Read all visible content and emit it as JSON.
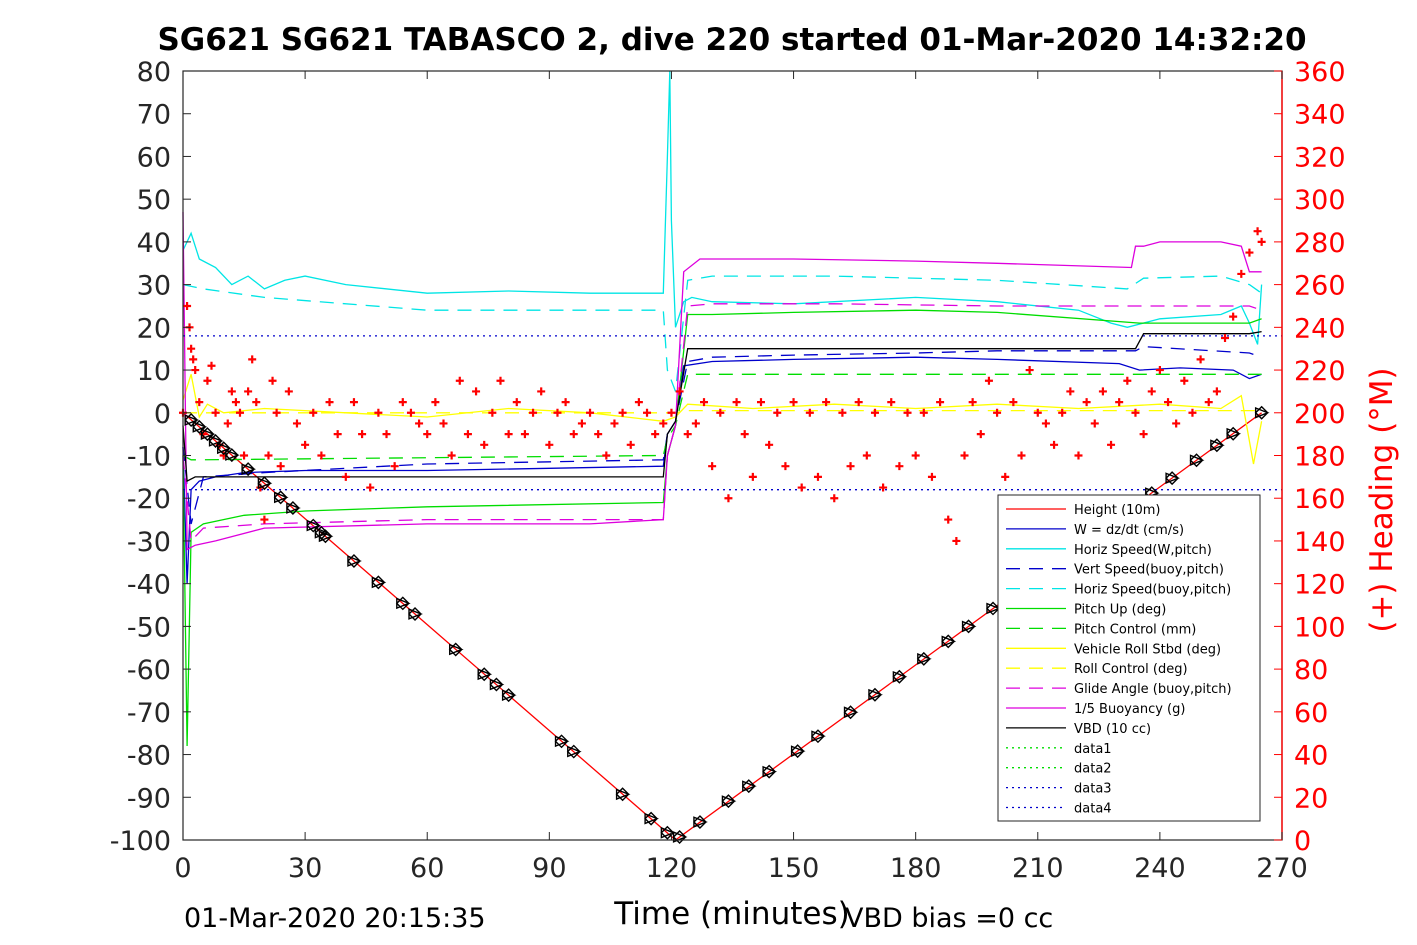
{
  "chart_data": {
    "type": "line",
    "title": "SG621 SG621 TABASCO 2, dive 220 started 01-Mar-2020 14:32:20",
    "xlabel": "Time (minutes)",
    "ylabel": "",
    "y2label": "(+) Heading (°M)",
    "footer_left": "01-Mar-2020 20:15:35",
    "footer_right": "VBD bias =0 cc",
    "xlim": [
      0,
      270
    ],
    "ylim": [
      -100,
      80
    ],
    "y2lim": [
      0,
      360
    ],
    "xticks": [
      "0",
      "30",
      "60",
      "90",
      "120",
      "150",
      "180",
      "210",
      "240",
      "270"
    ],
    "yticks": [
      "80",
      "70",
      "60",
      "50",
      "40",
      "30",
      "20",
      "10",
      "0",
      "-10",
      "-20",
      "-30",
      "-40",
      "-50",
      "-60",
      "-70",
      "-80",
      "-90",
      "-100"
    ],
    "y2ticks": [
      "360",
      "340",
      "320",
      "300",
      "280",
      "260",
      "240",
      "220",
      "200",
      "180",
      "160",
      "140",
      "120",
      "100",
      "80",
      "60",
      "40",
      "20",
      "0"
    ],
    "legend_position": "lower-right",
    "series": [
      {
        "name": "Height (10m)",
        "color": "#ff0000",
        "style": "solid",
        "x": [
          0,
          121,
          265
        ],
        "y": [
          0,
          -100,
          0
        ]
      },
      {
        "name": "W = dz/dt (cm/s)",
        "color": "#0000cc",
        "style": "solid",
        "x": [
          0,
          1,
          2,
          4,
          8,
          15,
          30,
          60,
          90,
          118,
          119,
          121,
          123,
          130,
          150,
          180,
          200,
          230,
          235,
          245,
          258,
          262,
          265
        ],
        "y": [
          -8,
          -40,
          -18,
          -16,
          -15,
          -14,
          -13.5,
          -13.5,
          -13,
          -12.5,
          -5,
          -2,
          11,
          12,
          12.5,
          13,
          12.5,
          11.5,
          10,
          10.5,
          10,
          8,
          9
        ]
      },
      {
        "name": "Horiz Speed(W,pitch)",
        "color": "#00e5e5",
        "style": "solid",
        "x": [
          0,
          2,
          4,
          8,
          12,
          16,
          20,
          25,
          30,
          40,
          60,
          80,
          100,
          118,
          119,
          119.6,
          120,
          121,
          123,
          125,
          130,
          150,
          180,
          200,
          220,
          228,
          232,
          240,
          255,
          260,
          262,
          264,
          265
        ],
        "y": [
          38,
          42,
          36,
          34,
          30,
          32,
          29,
          31,
          32,
          30,
          28,
          28.5,
          28,
          28,
          60,
          80,
          45,
          20,
          26,
          27,
          26,
          25.5,
          27,
          26,
          24,
          21,
          20,
          22,
          23,
          25,
          21,
          16,
          30
        ]
      },
      {
        "name": "Vert Speed(buoy,pitch)",
        "color": "#0000cc",
        "style": "dashed",
        "x": [
          0,
          2,
          5,
          20,
          60,
          118,
          119,
          121,
          124,
          130,
          150,
          180,
          200,
          234,
          236,
          262,
          265
        ],
        "y": [
          -8,
          -26,
          -15,
          -14,
          -12,
          -11,
          -5,
          -2,
          12,
          13,
          13.5,
          14,
          14.5,
          14.5,
          15.5,
          14,
          13
        ]
      },
      {
        "name": "Horiz Speed(buoy,pitch)",
        "color": "#00e5e5",
        "style": "dashed",
        "x": [
          0,
          5,
          20,
          60,
          118,
          119,
          121,
          124,
          130,
          160,
          200,
          232,
          236,
          255,
          262,
          265
        ],
        "y": [
          30,
          29,
          27,
          24,
          24,
          10,
          5,
          31,
          32,
          32,
          31,
          29,
          31.5,
          32,
          30,
          28
        ]
      },
      {
        "name": "Pitch Up (deg)",
        "color": "#00dd00",
        "style": "solid",
        "x": [
          0,
          1,
          2,
          5,
          15,
          30,
          60,
          118,
          119,
          121,
          124,
          130,
          150,
          180,
          200,
          235,
          262,
          265
        ],
        "y": [
          -10,
          -78,
          -28,
          -26,
          -24,
          -23,
          -22,
          -21,
          -10,
          -3,
          23,
          23,
          23.5,
          24,
          23.5,
          21,
          21,
          22
        ]
      },
      {
        "name": "Pitch Control (mm)",
        "color": "#00dd00",
        "style": "dashed",
        "x": [
          0,
          2,
          5,
          118,
          119,
          121,
          124,
          265
        ],
        "y": [
          -10,
          -11,
          -11,
          -10,
          -6,
          -3,
          9,
          9
        ]
      },
      {
        "name": "Vehicle Roll Stbd (deg)",
        "color": "#ffff00",
        "style": "solid",
        "x": [
          0,
          2,
          4,
          6,
          10,
          20,
          40,
          60,
          80,
          100,
          118,
          121,
          124,
          140,
          160,
          180,
          200,
          220,
          240,
          255,
          260,
          263,
          265
        ],
        "y": [
          3,
          9,
          -1,
          2,
          0,
          1,
          0,
          -1,
          1,
          0,
          -2,
          -1,
          2,
          1,
          2,
          1,
          2,
          1,
          2,
          1,
          4,
          -12,
          -2
        ]
      },
      {
        "name": "Roll Control (deg)",
        "color": "#ffff00",
        "style": "dashed",
        "x": [
          0,
          118,
          121,
          124,
          265
        ],
        "y": [
          0,
          0,
          0,
          0.5,
          0.5
        ]
      },
      {
        "name": "Glide Angle (buoy,pitch)",
        "color": "#dd00dd",
        "style": "dashed",
        "x": [
          0,
          2,
          5,
          20,
          60,
          118,
          119,
          121,
          124,
          130,
          160,
          200,
          240,
          262,
          265
        ],
        "y": [
          -10,
          -30,
          -27,
          -26,
          -25,
          -25,
          -10,
          -3,
          25,
          25.5,
          25.5,
          25,
          25,
          25,
          24
        ]
      },
      {
        "name": "1/5 Buoyancy (g)",
        "color": "#dd00dd",
        "style": "solid",
        "x": [
          0,
          1,
          3,
          8,
          20,
          60,
          100,
          118,
          119,
          121,
          123,
          127,
          150,
          180,
          200,
          233,
          234,
          236,
          240,
          255,
          260,
          262,
          265
        ],
        "y": [
          47,
          -32,
          -31,
          -30,
          -27,
          -26,
          -26,
          -25,
          -10,
          -3,
          33,
          36,
          36,
          35.5,
          35,
          34,
          39,
          39,
          40,
          40,
          39,
          33,
          33
        ]
      },
      {
        "name": "VBD (10 cc)",
        "color": "#000000",
        "style": "solid",
        "x": [
          0,
          1,
          3,
          10,
          118,
          119,
          121,
          124,
          150,
          200,
          234,
          236,
          262,
          265
        ],
        "y": [
          -3,
          -16,
          -15,
          -15,
          -15,
          -5,
          -2,
          15,
          15,
          15,
          15,
          18.5,
          18.5,
          19
        ]
      },
      {
        "name": "data1",
        "color": "#00dd00",
        "style": "dotted",
        "x": [],
        "y": []
      },
      {
        "name": "data2",
        "color": "#00dd00",
        "style": "dotted",
        "x": [],
        "y": []
      },
      {
        "name": "data3",
        "color": "#0000cc",
        "style": "dotted",
        "x": [
          0,
          270
        ],
        "y": [
          18,
          18
        ]
      },
      {
        "name": "data4",
        "color": "#0000cc",
        "style": "dotted",
        "x": [
          0,
          270
        ],
        "y": [
          -18,
          -18
        ]
      }
    ],
    "height_markers": {
      "color": "#000000",
      "x": [
        2,
        4,
        6,
        8,
        10,
        12,
        16,
        20,
        24,
        27,
        32,
        34,
        35,
        42,
        48,
        54,
        57,
        67,
        74,
        77,
        80,
        93,
        96,
        108,
        115,
        119,
        122,
        127,
        134,
        139,
        144,
        151,
        156,
        164,
        170,
        176,
        182,
        188,
        193,
        199,
        205,
        212,
        218,
        226,
        232,
        238,
        243,
        249,
        254,
        258,
        265
      ],
      "y": [
        -1.7,
        -3.3,
        -5,
        -6.6,
        -8.3,
        -9.9,
        -13.2,
        -16.5,
        -19.8,
        -22.3,
        -26.4,
        -28.1,
        -28.9,
        -34.7,
        -39.7,
        -44.6,
        -47.1,
        -55.4,
        -61.2,
        -63.6,
        -66.1,
        -76.9,
        -79.3,
        -89.3,
        -95,
        -98.3,
        -99.3,
        -95.8,
        -90.9,
        -87.4,
        -84,
        -79.2,
        -75.7,
        -70.1,
        -66,
        -61.8,
        -57.6,
        -53.5,
        -50,
        -45.8,
        -41.7,
        -36.8,
        -32.6,
        -27.1,
        -22.9,
        -18.8,
        -15.3,
        -11.1,
        -7.6,
        -4.9,
        0
      ]
    },
    "heading": {
      "name": "(+) Heading (°M)",
      "color": "#ff0000",
      "axis": "right",
      "x": [
        0,
        1,
        1.6,
        2,
        2.5,
        3,
        4,
        5,
        6,
        7,
        8,
        9,
        10,
        11,
        12,
        13,
        14,
        15,
        16,
        17,
        18,
        19,
        20,
        21,
        22,
        23,
        24,
        26,
        28,
        30,
        32,
        34,
        36,
        38,
        40,
        42,
        44,
        46,
        48,
        50,
        52,
        54,
        56,
        58,
        60,
        62,
        64,
        66,
        68,
        70,
        72,
        74,
        76,
        78,
        80,
        82,
        84,
        86,
        88,
        90,
        92,
        94,
        96,
        98,
        100,
        102,
        104,
        106,
        108,
        110,
        112,
        114,
        116,
        118,
        120,
        122,
        124,
        126,
        128,
        130,
        132,
        134,
        136,
        138,
        140,
        142,
        144,
        146,
        148,
        150,
        152,
        154,
        156,
        158,
        160,
        162,
        164,
        166,
        168,
        170,
        172,
        174,
        176,
        178,
        180,
        182,
        184,
        186,
        188,
        190,
        192,
        194,
        196,
        198,
        200,
        202,
        204,
        206,
        208,
        210,
        212,
        214,
        216,
        218,
        220,
        222,
        224,
        226,
        228,
        230,
        232,
        234,
        236,
        238,
        240,
        242,
        244,
        246,
        248,
        250,
        252,
        254,
        256,
        258,
        260,
        262,
        264,
        265
      ],
      "y": [
        200,
        250,
        240,
        230,
        225,
        220,
        205,
        190,
        215,
        222,
        200,
        185,
        180,
        195,
        210,
        205,
        200,
        180,
        210,
        225,
        205,
        165,
        150,
        180,
        215,
        200,
        175,
        210,
        195,
        185,
        200,
        180,
        205,
        190,
        170,
        205,
        190,
        165,
        200,
        190,
        175,
        205,
        200,
        195,
        190,
        205,
        195,
        180,
        215,
        190,
        210,
        185,
        200,
        215,
        190,
        205,
        190,
        200,
        210,
        185,
        200,
        205,
        190,
        195,
        200,
        190,
        180,
        195,
        200,
        185,
        205,
        200,
        190,
        195,
        200,
        210,
        190,
        195,
        205,
        175,
        200,
        160,
        205,
        190,
        170,
        205,
        185,
        200,
        175,
        205,
        165,
        200,
        170,
        205,
        160,
        200,
        175,
        205,
        180,
        200,
        165,
        205,
        175,
        200,
        180,
        200,
        170,
        205,
        150,
        140,
        180,
        205,
        190,
        215,
        200,
        170,
        205,
        180,
        220,
        200,
        195,
        185,
        200,
        210,
        180,
        205,
        195,
        210,
        185,
        205,
        215,
        200,
        190,
        210,
        220,
        205,
        195,
        215,
        200,
        225,
        205,
        210,
        235,
        245,
        265,
        275,
        285,
        280
      ]
    }
  }
}
